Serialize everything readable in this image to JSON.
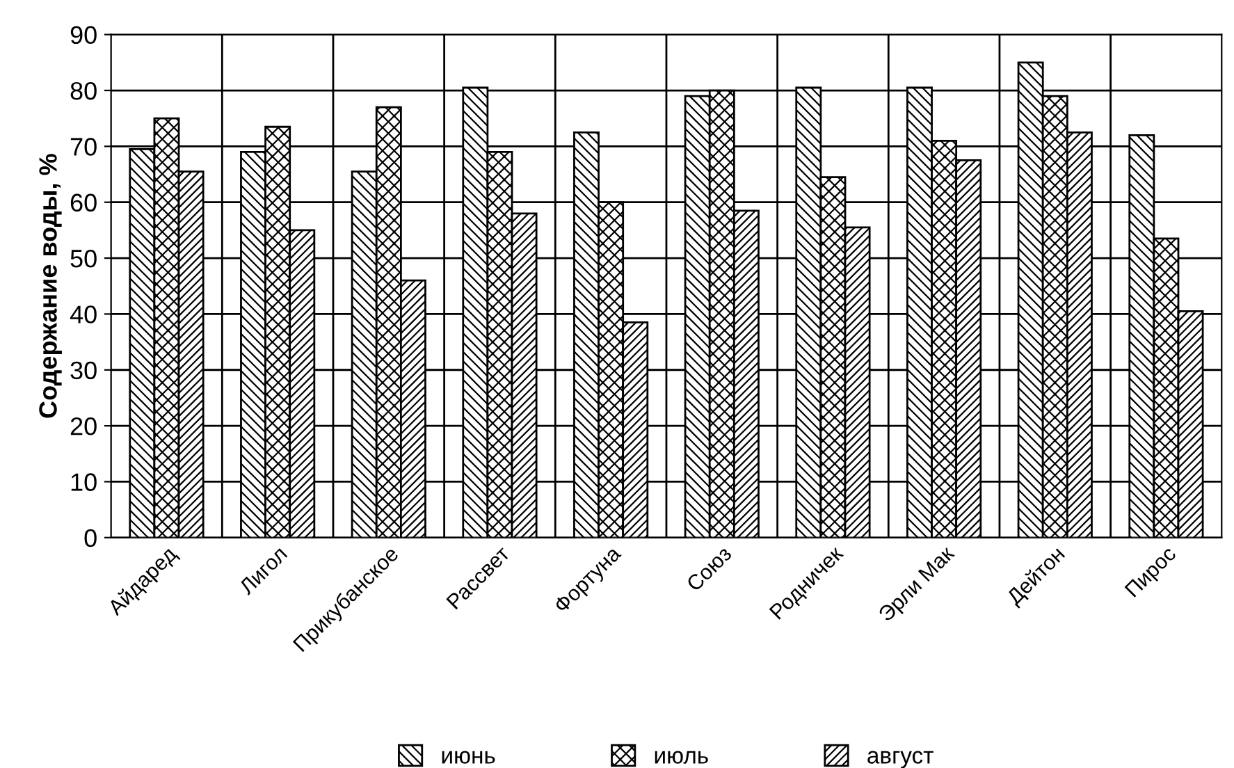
{
  "chart_data": {
    "type": "bar",
    "ylabel": "Содержание воды, %",
    "categories": [
      "Айдаред",
      "Лигол",
      "Прикубанское",
      "Рассвет",
      "Фортуна",
      "Союз",
      "Родничек",
      "Эрли Мак",
      "Дейтон",
      "Пирос"
    ],
    "series": [
      {
        "name": "июнь",
        "color": "#000000",
        "values": [
          69.5,
          69,
          65.5,
          80.5,
          72.5,
          79,
          80.5,
          80.5,
          85,
          72
        ]
      },
      {
        "name": "июль",
        "color": "#000000",
        "values": [
          75,
          73.5,
          77,
          69,
          60,
          80,
          64.5,
          71,
          79,
          53.5
        ]
      },
      {
        "name": "август",
        "color": "#000000",
        "values": [
          65.5,
          55,
          46,
          58,
          38.5,
          58.5,
          55.5,
          67.5,
          72.5,
          40.5
        ]
      }
    ],
    "ylim": [
      0,
      90
    ],
    "yticks": [
      0,
      10,
      20,
      30,
      40,
      50,
      60,
      70,
      80,
      90
    ],
    "grid": true,
    "legend": "bottom"
  }
}
